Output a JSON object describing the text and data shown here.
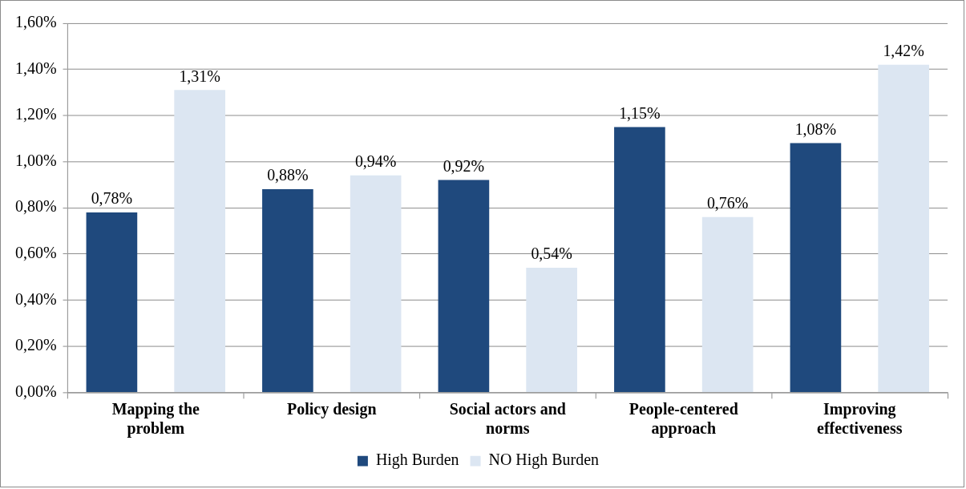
{
  "chart_data": {
    "type": "bar",
    "categories": [
      "Mapping the problem",
      "Policy design",
      "Social actors and norms",
      "People-centered approach",
      "Improving effectiveness"
    ],
    "series": [
      {
        "name": "High Burden",
        "color": "#1f497d",
        "values": [
          0.78,
          0.88,
          0.92,
          1.15,
          1.08
        ],
        "value_labels": [
          "0,78%",
          "0,88%",
          "0,92%",
          "1,15%",
          "1,08%"
        ]
      },
      {
        "name": "NO High Burden",
        "color": "#dce6f2",
        "values": [
          1.31,
          0.94,
          0.54,
          0.76,
          1.42
        ],
        "value_labels": [
          "1,31%",
          "0,94%",
          "0,54%",
          "0,76%",
          "1,42%"
        ]
      }
    ],
    "ylim": [
      0,
      1.6
    ],
    "yticks": [
      {
        "value": 0,
        "label": "0,00%"
      },
      {
        "value": 0.2,
        "label": "0,20%"
      },
      {
        "value": 0.4,
        "label": "0,40%"
      },
      {
        "value": 0.6,
        "label": "0,60%"
      },
      {
        "value": 0.8,
        "label": "0,80%"
      },
      {
        "value": 1.0,
        "label": "1,00%"
      },
      {
        "value": 1.2,
        "label": "1,20%"
      },
      {
        "value": 1.4,
        "label": "1,40%"
      },
      {
        "value": 1.6,
        "label": "1,60%"
      }
    ],
    "grid": "y",
    "legend": "bottom"
  }
}
